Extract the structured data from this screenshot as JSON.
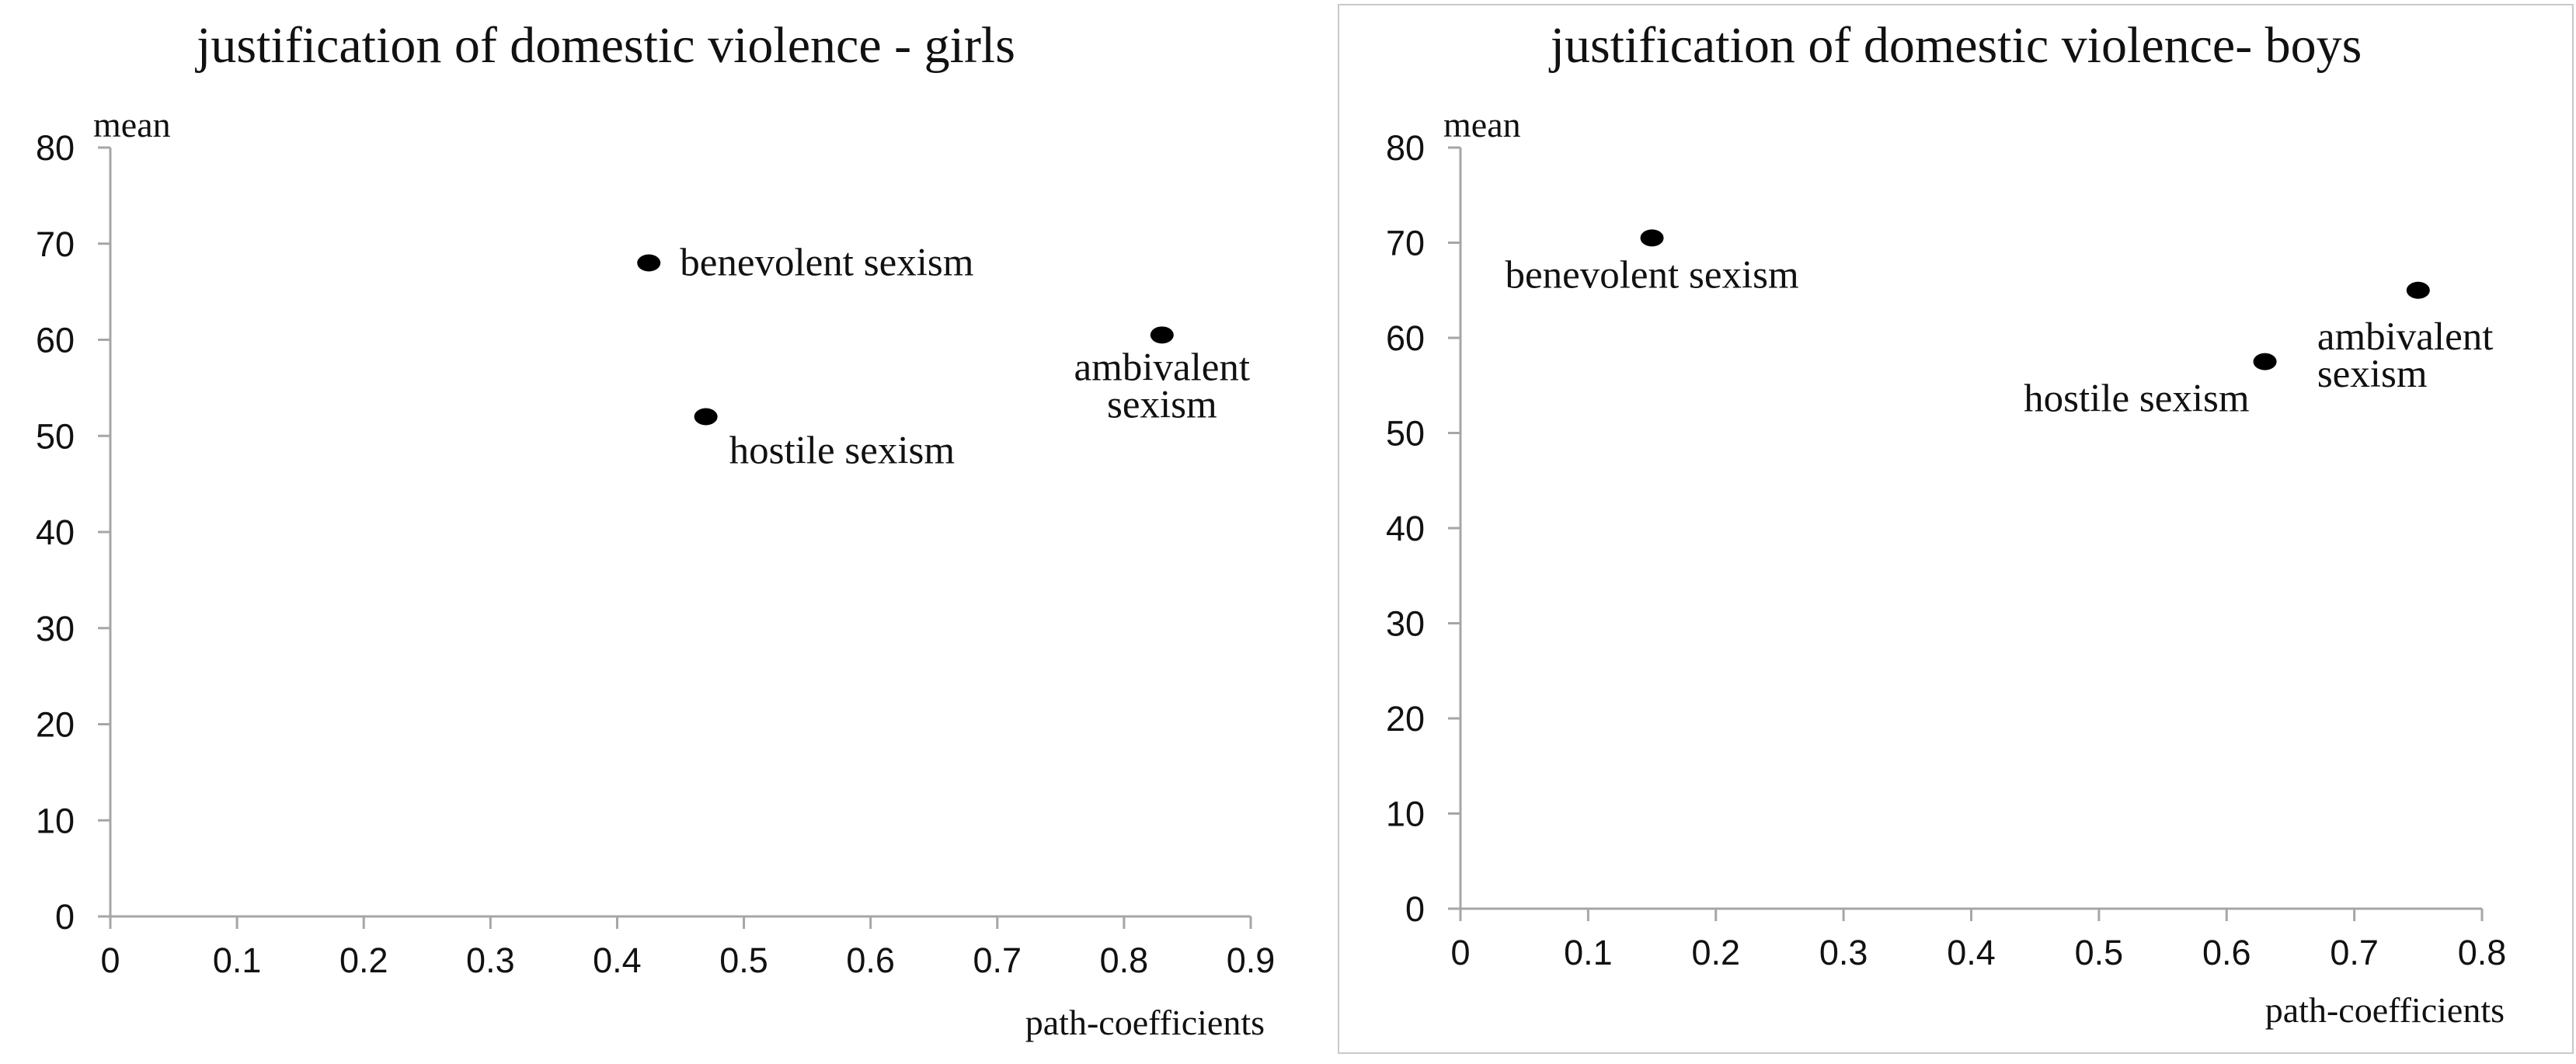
{
  "chart_data": [
    {
      "type": "scatter",
      "title": "justification of domestic violence - girls",
      "xlabel": "path-coefficients",
      "ylabel": "mean",
      "xlim": [
        0,
        0.9
      ],
      "ylim": [
        0,
        80
      ],
      "xticks": [
        "0",
        "0.1",
        "0.2",
        "0.3",
        "0.4",
        "0.5",
        "0.6",
        "0.7",
        "0.8",
        "0.9"
      ],
      "yticks": [
        "0",
        "10",
        "20",
        "30",
        "40",
        "50",
        "60",
        "70",
        "80"
      ],
      "grid": false,
      "legend": "none",
      "marker_color": "#000000",
      "points": [
        {
          "label": "benevolent sexism",
          "x": 0.425,
          "y": 68,
          "label_lines": [
            "benevolent sexism"
          ],
          "label_side": "right"
        },
        {
          "label": "hostile sexism",
          "x": 0.47,
          "y": 52,
          "label_lines": [
            "hostile sexism"
          ],
          "label_side": "below-right"
        },
        {
          "label": "ambivalent sexism",
          "x": 0.83,
          "y": 60.5,
          "label_lines": [
            "ambivalent",
            "sexism"
          ],
          "label_side": "below"
        }
      ]
    },
    {
      "type": "scatter",
      "title": "justification of domestic violence- boys",
      "xlabel": "path-coefficients",
      "ylabel": "mean",
      "xlim": [
        0,
        0.8
      ],
      "ylim": [
        0,
        80
      ],
      "xticks": [
        "0",
        "0.1",
        "0.2",
        "0.3",
        "0.4",
        "0.5",
        "0.6",
        "0.7",
        "0.8"
      ],
      "yticks": [
        "0",
        "10",
        "20",
        "30",
        "40",
        "50",
        "60",
        "70",
        "80"
      ],
      "grid": false,
      "legend": "none",
      "marker_color": "#000000",
      "points": [
        {
          "label": "benevolent sexism",
          "x": 0.15,
          "y": 70.5,
          "label_lines": [
            "benevolent sexism"
          ],
          "label_side": "below"
        },
        {
          "label": "hostile sexism",
          "x": 0.63,
          "y": 57.5,
          "label_lines": [
            "hostile sexism"
          ],
          "label_side": "below-left"
        },
        {
          "label": "ambivalent sexism",
          "x": 0.75,
          "y": 65,
          "label_lines": [
            "ambivalent",
            "sexism"
          ],
          "label_side": "below-right"
        }
      ]
    }
  ]
}
